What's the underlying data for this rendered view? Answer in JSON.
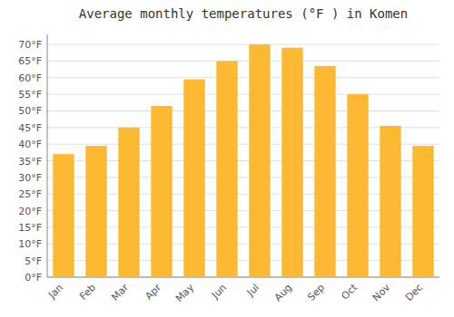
{
  "chart_data": {
    "type": "bar",
    "title": "Average monthly temperatures (°F ) in Komen",
    "categories": [
      "Jan",
      "Feb",
      "Mar",
      "Apr",
      "May",
      "Jun",
      "Jul",
      "Aug",
      "Sep",
      "Oct",
      "Nov",
      "Dec"
    ],
    "values": [
      37,
      39.5,
      45,
      51.5,
      59.5,
      65,
      70,
      69,
      63.5,
      55,
      45.5,
      39.5
    ],
    "color": "#FDB931",
    "ylim": [
      0,
      73
    ],
    "yticks": [
      {
        "value": 0,
        "label": "0°F"
      },
      {
        "value": 5,
        "label": "5°F"
      },
      {
        "value": 10,
        "label": "10°F"
      },
      {
        "value": 15,
        "label": "15°F"
      },
      {
        "value": 20,
        "label": "20°F"
      },
      {
        "value": 25,
        "label": "25°F"
      },
      {
        "value": 30,
        "label": "30°F"
      },
      {
        "value": 35,
        "label": "35°F"
      },
      {
        "value": 40,
        "label": "40°F"
      },
      {
        "value": 45,
        "label": "45°F"
      },
      {
        "value": 50,
        "label": "50°F"
      },
      {
        "value": 55,
        "label": "55°F"
      },
      {
        "value": 60,
        "label": "60°F"
      },
      {
        "value": 65,
        "label": "65°F"
      },
      {
        "value": 70,
        "label": "70°F"
      }
    ],
    "grid": true
  }
}
